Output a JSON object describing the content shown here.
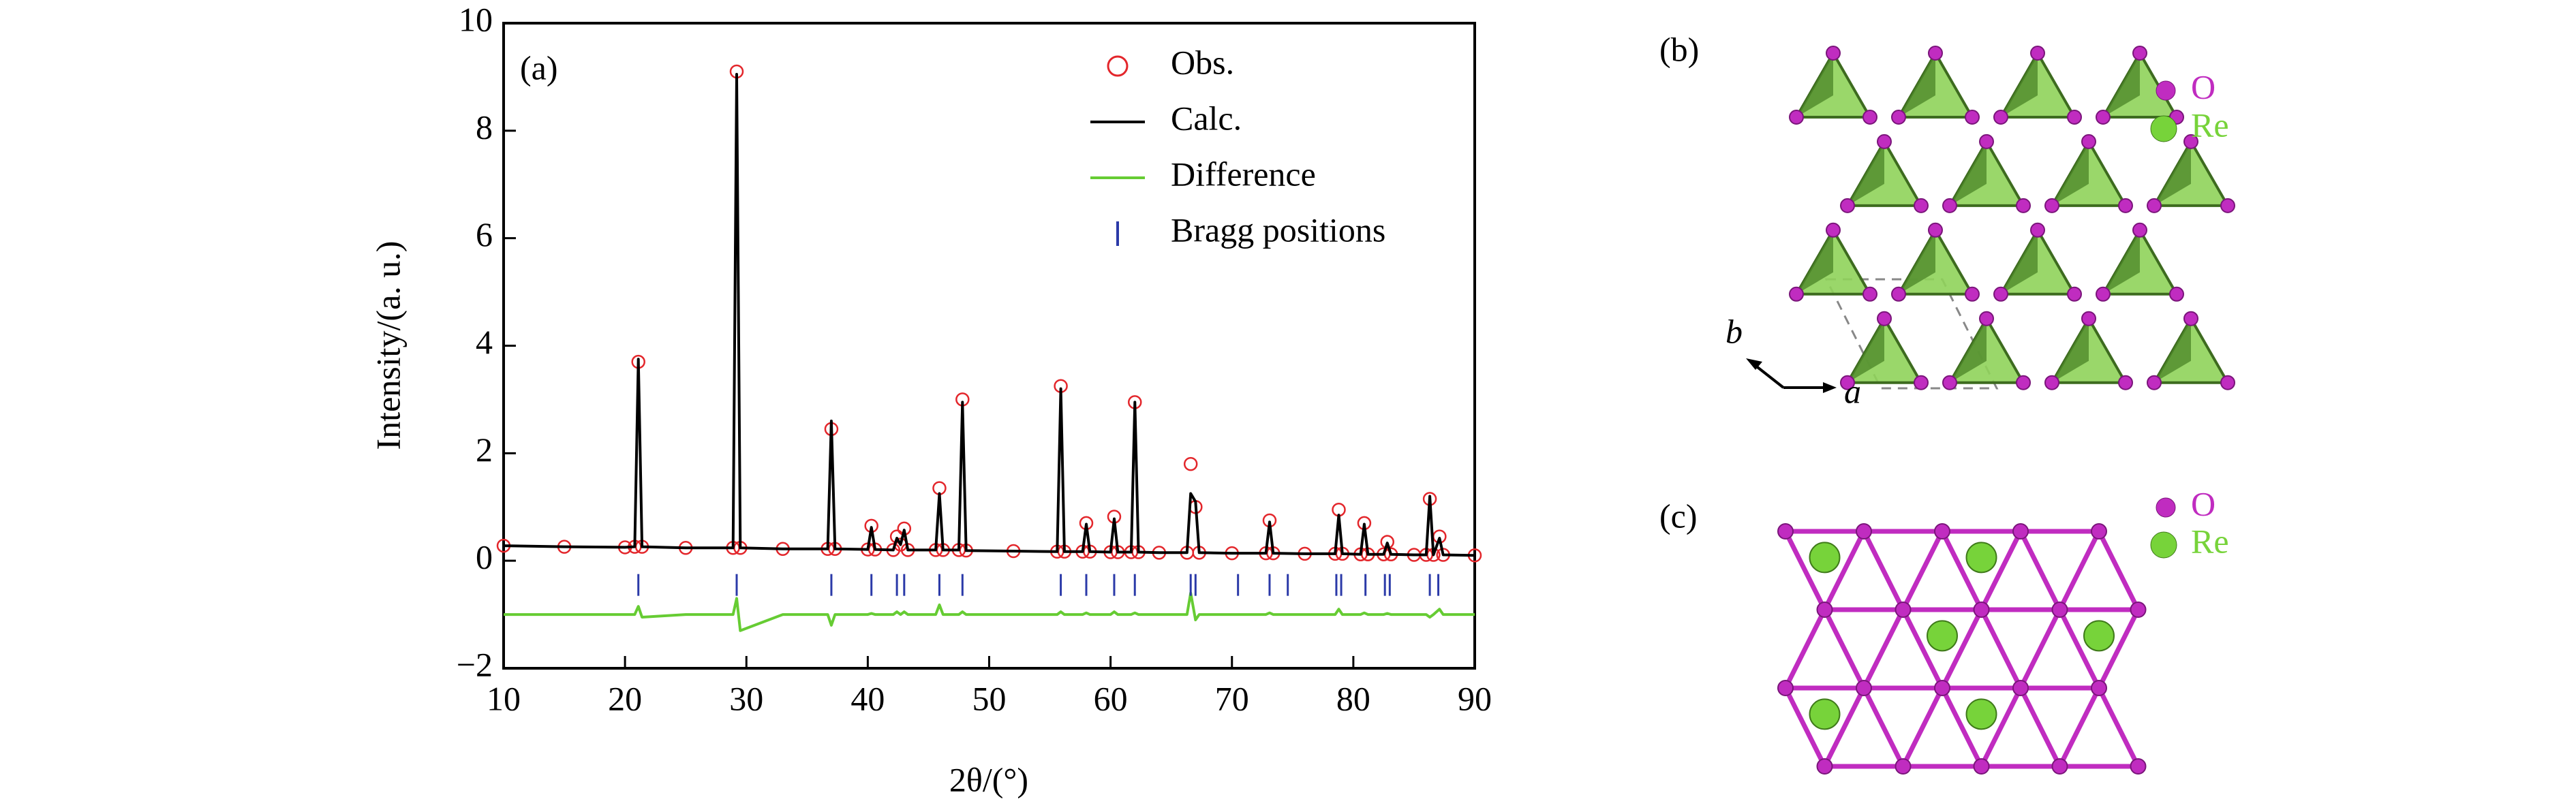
{
  "chart_data": {
    "type": "line",
    "panel_label": "(a)",
    "xlabel": "2θ/(°)",
    "ylabel": "Intensity/(a. u.)",
    "xlim": [
      10,
      90
    ],
    "xticks": [
      10,
      20,
      30,
      40,
      50,
      60,
      70,
      80,
      90
    ],
    "ylim": [
      -2,
      10
    ],
    "yticks": [
      {
        "value": -2,
        "label": "−2"
      },
      0,
      2,
      4,
      6,
      8,
      10
    ],
    "legend": "upper right",
    "x": [
      10,
      15,
      20,
      20.8,
      21.1,
      21.4,
      25,
      28.9,
      29.2,
      29.5,
      33,
      36.7,
      37.0,
      37.3,
      40.0,
      40.3,
      40.6,
      42.1,
      42.4,
      42.7,
      43.0,
      43.3,
      45.6,
      45.9,
      46.2,
      47.5,
      47.8,
      48.1,
      52,
      55.6,
      55.9,
      56.2,
      57.7,
      58.0,
      58.3,
      60.0,
      60.3,
      60.6,
      61.7,
      62.0,
      62.3,
      64,
      66.3,
      66.6,
      67.0,
      67.3,
      70,
      72.8,
      73.1,
      73.4,
      76,
      78.5,
      78.8,
      79.1,
      80.6,
      80.9,
      81.2,
      82.5,
      82.8,
      83.1,
      85,
      86.0,
      86.3,
      86.6,
      87.1,
      87.4,
      90
    ],
    "series": [
      {
        "name": "Obs.",
        "color": "#e3262b",
        "mark": "circle",
        "values": [
          0.28,
          0.26,
          0.25,
          0.26,
          3.7,
          0.26,
          0.24,
          0.24,
          9.1,
          0.24,
          0.22,
          0.22,
          2.45,
          0.22,
          0.21,
          0.65,
          0.21,
          0.2,
          0.45,
          0.3,
          0.6,
          0.2,
          0.2,
          1.35,
          0.2,
          0.2,
          3.0,
          0.19,
          0.18,
          0.17,
          3.25,
          0.17,
          0.17,
          0.7,
          0.17,
          0.16,
          0.82,
          0.16,
          0.16,
          2.95,
          0.16,
          0.15,
          0.15,
          1.8,
          1.0,
          0.15,
          0.14,
          0.14,
          0.75,
          0.14,
          0.13,
          0.13,
          0.95,
          0.13,
          0.12,
          0.7,
          0.12,
          0.12,
          0.35,
          0.12,
          0.11,
          0.11,
          1.15,
          0.11,
          0.45,
          0.11,
          0.1
        ]
      },
      {
        "name": "Calc.",
        "color": "#000000",
        "mark": "line",
        "values": [
          0.28,
          0.26,
          0.25,
          0.26,
          3.75,
          0.26,
          0.24,
          0.24,
          9.05,
          0.24,
          0.22,
          0.22,
          2.6,
          0.22,
          0.21,
          0.62,
          0.21,
          0.2,
          0.42,
          0.3,
          0.57,
          0.2,
          0.2,
          1.25,
          0.2,
          0.2,
          2.95,
          0.19,
          0.18,
          0.17,
          3.2,
          0.17,
          0.17,
          0.68,
          0.17,
          0.16,
          0.78,
          0.16,
          0.16,
          2.95,
          0.16,
          0.15,
          0.15,
          1.25,
          1.1,
          0.15,
          0.14,
          0.14,
          0.72,
          0.14,
          0.13,
          0.13,
          0.85,
          0.13,
          0.12,
          0.68,
          0.12,
          0.12,
          0.33,
          0.12,
          0.11,
          0.11,
          1.2,
          0.11,
          0.42,
          0.11,
          0.1
        ]
      },
      {
        "name": "Difference",
        "color": "#66cc33",
        "mark": "line",
        "values": [
          -1.0,
          -1.0,
          -1.0,
          -1.0,
          -0.85,
          -1.05,
          -1.0,
          -1.0,
          -0.7,
          -1.3,
          -1.0,
          -1.0,
          -1.2,
          -1.0,
          -1.0,
          -0.98,
          -1.0,
          -1.0,
          -0.95,
          -1.0,
          -0.95,
          -1.0,
          -1.0,
          -0.82,
          -1.0,
          -1.0,
          -0.95,
          -1.0,
          -1.0,
          -1.0,
          -0.95,
          -1.0,
          -1.0,
          -0.97,
          -1.0,
          -1.0,
          -0.95,
          -1.0,
          -1.0,
          -0.97,
          -1.0,
          -1.0,
          -1.0,
          -0.6,
          -1.1,
          -1.0,
          -1.0,
          -1.0,
          -0.97,
          -1.0,
          -1.0,
          -1.0,
          -0.9,
          -1.0,
          -1.0,
          -0.97,
          -1.0,
          -1.0,
          -0.98,
          -1.0,
          -1.0,
          -1.0,
          -1.05,
          -1.0,
          -0.9,
          -1.0,
          -1.0
        ]
      },
      {
        "name": "Bragg positions",
        "color": "#2b3aa8",
        "mark": "tick",
        "x": [
          21.1,
          29.2,
          37.0,
          40.3,
          42.4,
          43.0,
          45.9,
          47.8,
          55.9,
          58.0,
          60.3,
          62.0,
          66.6,
          67.0,
          70.5,
          73.1,
          74.6,
          78.6,
          79.0,
          81.0,
          82.6,
          83.0,
          86.3,
          87.0
        ],
        "values": [
          -0.45,
          -0.45,
          -0.45,
          -0.45,
          -0.45,
          -0.45,
          -0.45,
          -0.45,
          -0.45,
          -0.45,
          -0.45,
          -0.45,
          -0.45,
          -0.45,
          -0.45,
          -0.45,
          -0.45,
          -0.45,
          -0.45,
          -0.45,
          -0.45,
          -0.45,
          -0.45,
          -0.45
        ]
      }
    ]
  },
  "panel_b": {
    "label": "(b)",
    "legend": [
      "O",
      "Re"
    ],
    "axes": [
      "b",
      "a"
    ]
  },
  "panel_c": {
    "label": "(c)",
    "legend": [
      "O",
      "Re"
    ]
  }
}
